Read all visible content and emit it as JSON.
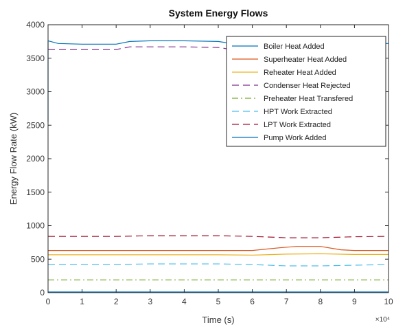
{
  "chart_data": {
    "type": "line",
    "title": "System Energy Flows",
    "xlabel": "Time (s)",
    "ylabel": "Energy Flow Rate (kW)",
    "x_multiplier_label": "×10⁴",
    "xlim": [
      0,
      10
    ],
    "ylim": [
      0,
      4000
    ],
    "x_ticks": [
      "0",
      "1",
      "2",
      "3",
      "4",
      "5",
      "6",
      "7",
      "8",
      "9",
      "10"
    ],
    "y_ticks": [
      "0",
      "500",
      "1000",
      "1500",
      "2000",
      "2500",
      "3000",
      "3500",
      "4000"
    ],
    "grid": false,
    "legend_position": "top-right",
    "series": [
      {
        "name": "Boiler Heat Added",
        "color": "#0072BD",
        "dash": "solid",
        "x": [
          0,
          0.3,
          1,
          2,
          2.4,
          3,
          4,
          5,
          5.4,
          6,
          7,
          8,
          9,
          10
        ],
        "y": [
          3760,
          3720,
          3710,
          3710,
          3750,
          3760,
          3760,
          3750,
          3720,
          3710,
          3700,
          3710,
          3720,
          3720
        ]
      },
      {
        "name": "Superheater Heat Added",
        "color": "#D95319",
        "dash": "solid",
        "x": [
          0,
          1,
          2,
          3,
          4,
          5,
          6,
          6.8,
          7.3,
          8,
          8.6,
          9,
          10
        ],
        "y": [
          630,
          630,
          630,
          630,
          630,
          630,
          630,
          670,
          690,
          690,
          640,
          630,
          630
        ]
      },
      {
        "name": "Reheater Heat Added",
        "color": "#EDB120",
        "dash": "solid",
        "x": [
          0,
          1,
          2,
          3,
          4,
          5,
          6,
          7,
          8,
          9,
          10
        ],
        "y": [
          565,
          565,
          565,
          565,
          565,
          565,
          560,
          575,
          580,
          570,
          570
        ]
      },
      {
        "name": "Condenser Heat Rejected",
        "color": "#7E2F8E",
        "dash": "dashed",
        "x": [
          0,
          1,
          2,
          2.4,
          3,
          4,
          5,
          5.4,
          6,
          7,
          8,
          9,
          10
        ],
        "y": [
          3630,
          3630,
          3630,
          3670,
          3670,
          3670,
          3660,
          3630,
          3630,
          3630,
          3630,
          3630,
          3630
        ]
      },
      {
        "name": "Preheater Heat Transfered",
        "color": "#77AC30",
        "dash": "dashdot",
        "x": [
          0,
          1,
          2,
          3,
          4,
          5,
          6,
          7,
          8,
          9,
          10
        ],
        "y": [
          190,
          190,
          190,
          190,
          190,
          190,
          190,
          190,
          190,
          190,
          190
        ]
      },
      {
        "name": "HPT Work Extracted",
        "color": "#4DBEEE",
        "dash": "dashed",
        "x": [
          0,
          1,
          2,
          3,
          4,
          5,
          6,
          7,
          8,
          9,
          10
        ],
        "y": [
          420,
          420,
          420,
          430,
          430,
          430,
          420,
          400,
          400,
          410,
          420
        ]
      },
      {
        "name": "LPT Work Extracted",
        "color": "#A2142F",
        "dash": "dashed",
        "x": [
          0,
          1,
          2,
          3,
          4,
          5,
          6,
          7,
          8,
          9,
          10
        ],
        "y": [
          840,
          840,
          840,
          850,
          850,
          850,
          840,
          820,
          820,
          835,
          840
        ]
      },
      {
        "name": "Pump Work Added",
        "color": "#0072BD",
        "dash": "solid",
        "x": [
          0,
          1,
          2,
          3,
          4,
          5,
          6,
          7,
          8,
          9,
          10
        ],
        "y": [
          10,
          10,
          10,
          10,
          10,
          10,
          10,
          10,
          10,
          10,
          10
        ]
      }
    ]
  }
}
